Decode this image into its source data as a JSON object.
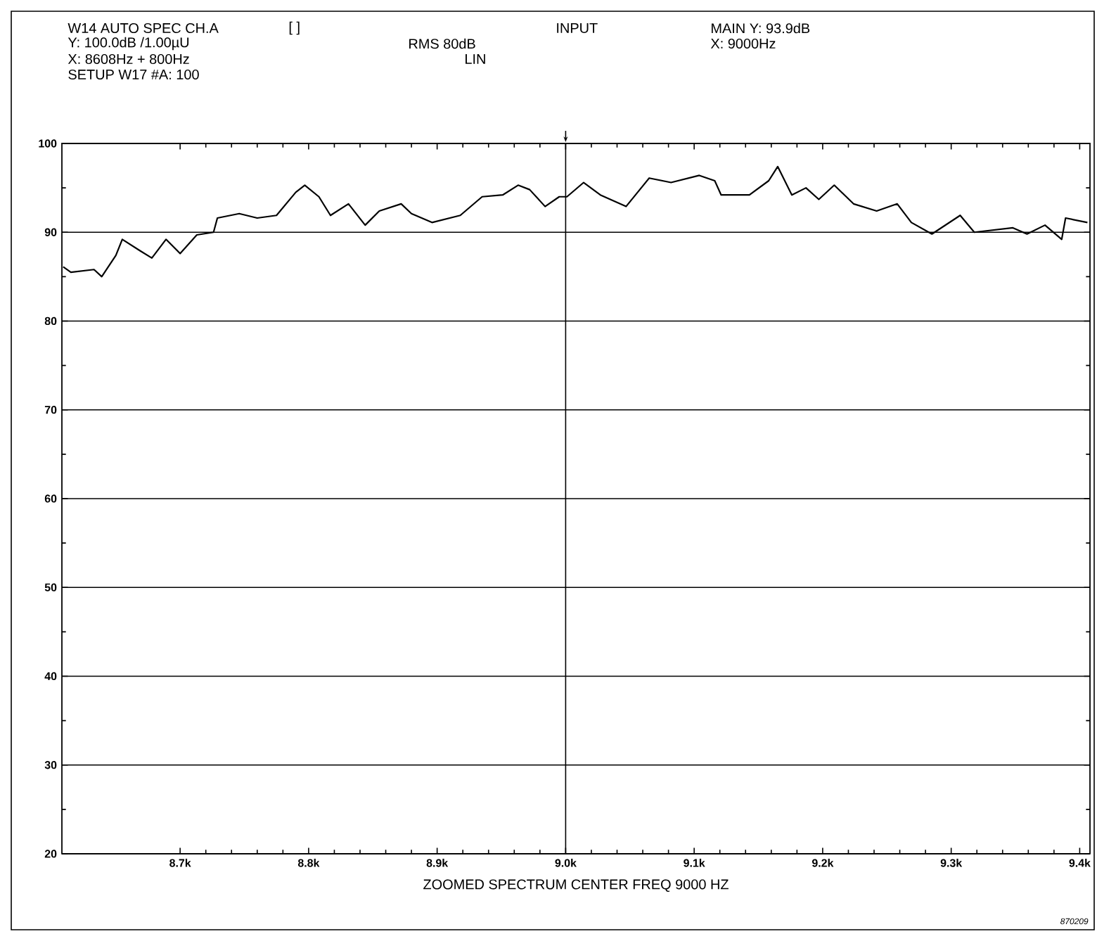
{
  "chart_data": {
    "type": "line",
    "xlabel": "ZOOMED SPECTRUM CENTER FREQ 9000 HZ",
    "annotations": [
      "W14 AUTO SPEC CH.A",
      "[ ]",
      "INPUT",
      "MAIN Y: 93.9dB",
      "Y: 100.0dB /1.00µU",
      "RMS 80dB",
      "X: 9000Hz",
      "X: 8608Hz + 800Hz",
      "LIN",
      "SETUP W17 #A: 100",
      "870209"
    ],
    "x": [
      8609,
      8615,
      8633,
      8639,
      8650,
      8655,
      8669,
      8678,
      8689,
      8700,
      8713,
      8726,
      8729,
      8746,
      8760,
      8775,
      8790,
      8797,
      8808,
      8817,
      8831,
      8844,
      8855,
      8872,
      8880,
      8896,
      8918,
      8935,
      8951,
      8963,
      8972,
      8984,
      8995,
      9001,
      9014,
      9027,
      9047,
      9065,
      9082,
      9104,
      9116,
      9121,
      9143,
      9158,
      9165,
      9176,
      9187,
      9197,
      9209,
      9224,
      9242,
      9258,
      9269,
      9285,
      9307,
      9318,
      9348,
      9359,
      9373,
      9386,
      9389,
      9406
    ],
    "series": [
      {
        "color": "#000000",
        "line_style": "solid",
        "values": [
          86.1,
          85.5,
          85.8,
          85.0,
          87.4,
          89.2,
          87.9,
          87.1,
          89.2,
          87.6,
          89.7,
          90.0,
          91.6,
          92.1,
          91.6,
          91.9,
          94.5,
          95.3,
          94.0,
          91.9,
          93.2,
          90.8,
          92.4,
          93.2,
          92.1,
          91.1,
          91.9,
          94.0,
          94.2,
          95.3,
          94.8,
          92.9,
          94.0,
          94.0,
          95.6,
          94.2,
          92.9,
          96.1,
          95.6,
          96.4,
          95.8,
          94.2,
          94.2,
          95.8,
          97.4,
          94.2,
          95.0,
          93.7,
          95.3,
          93.2,
          92.4,
          93.2,
          91.1,
          89.8,
          91.9,
          90.0,
          90.5,
          89.8,
          90.8,
          89.2,
          91.6,
          91.1
        ]
      }
    ],
    "xlim": [
      8608,
      9408
    ],
    "xticks": [
      {
        "value": 8700,
        "label": "8.7k"
      },
      {
        "value": 8800,
        "label": "8.8k"
      },
      {
        "value": 8900,
        "label": "8.9k"
      },
      {
        "value": 9000,
        "label": "9.0k"
      },
      {
        "value": 9100,
        "label": "9.1k"
      },
      {
        "value": 9200,
        "label": "9.2k"
      },
      {
        "value": 9300,
        "label": "9.3k"
      },
      {
        "value": 9400,
        "label": "9.4k"
      }
    ],
    "ylim": [
      20,
      100
    ],
    "yticks": [
      20,
      30,
      40,
      50,
      60,
      70,
      80,
      90,
      100
    ],
    "grid": "y",
    "ref_lines": [
      {
        "axis": "x",
        "value": 9000,
        "color": "#000000"
      }
    ]
  }
}
